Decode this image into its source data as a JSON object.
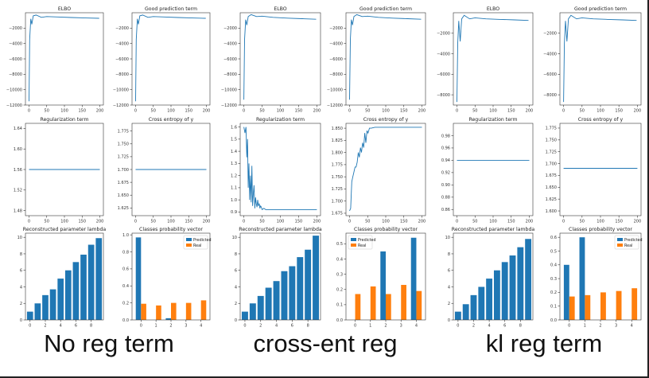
{
  "colors": {
    "line": "#1f77b4",
    "predicted": "#1f77b4",
    "real": "#ff7f0e"
  },
  "captions": [
    "No reg term",
    "cross-ent reg",
    "kl reg term"
  ],
  "chart_data": [
    {
      "type": "line",
      "title": "ELBO",
      "xlim": [
        0,
        200
      ],
      "ylim": [
        -12000,
        0
      ],
      "xticks": [
        0,
        50,
        100,
        150,
        200
      ],
      "yticks": [
        -2000,
        -4000,
        -6000,
        -8000,
        -10000,
        -12000
      ],
      "ytick_labels": [
        "−2000",
        "−4000",
        "−6000",
        "−8000",
        "−10000",
        "−12000"
      ],
      "x": [
        0,
        2,
        5,
        8,
        12,
        20,
        35,
        50,
        80,
        120,
        160,
        198
      ],
      "y": [
        -11500,
        -3500,
        -800,
        -1500,
        -400,
        -300,
        -600,
        -500,
        -550,
        -620,
        -680,
        -720
      ]
    },
    {
      "type": "line",
      "title": "Good prediction term",
      "xlim": [
        0,
        200
      ],
      "ylim": [
        -12000,
        0
      ],
      "xticks": [
        0,
        50,
        100,
        150,
        200
      ],
      "yticks": [
        -2000,
        -4000,
        -6000,
        -8000,
        -10000,
        -12000
      ],
      "ytick_labels": [
        "−2000",
        "−4000",
        "−6000",
        "−8000",
        "−10000",
        "−12000"
      ],
      "x": [
        0,
        2,
        5,
        8,
        12,
        20,
        35,
        50,
        80,
        120,
        160,
        198
      ],
      "y": [
        -11500,
        -3500,
        -800,
        -1500,
        -400,
        -300,
        -600,
        -500,
        -550,
        -620,
        -680,
        -720
      ]
    },
    {
      "type": "line",
      "title": "ELBO",
      "xlim": [
        0,
        200
      ],
      "ylim": [
        -12000,
        0
      ],
      "xticks": [
        0,
        50,
        100,
        150,
        200
      ],
      "yticks": [
        -2000,
        -4000,
        -6000,
        -8000,
        -10000,
        -12000
      ],
      "ytick_labels": [
        "−2000",
        "−4000",
        "−6000",
        "−8000",
        "−10000",
        "−12000"
      ],
      "x": [
        0,
        2,
        5,
        8,
        12,
        20,
        35,
        50,
        80,
        120,
        160,
        198
      ],
      "y": [
        -11300,
        -3500,
        -900,
        -1600,
        -500,
        -250,
        -500,
        -450,
        -600,
        -700,
        -780,
        -850
      ]
    },
    {
      "type": "line",
      "title": "Good prediction term",
      "xlim": [
        0,
        200
      ],
      "ylim": [
        -12000,
        0
      ],
      "xticks": [
        0,
        50,
        100,
        150,
        200
      ],
      "yticks": [
        -2000,
        -4000,
        -6000,
        -8000,
        -10000,
        -12000
      ],
      "ytick_labels": [
        "−2000",
        "−4000",
        "−6000",
        "−8000",
        "−10000",
        "−12000"
      ],
      "x": [
        0,
        2,
        5,
        8,
        12,
        20,
        35,
        50,
        80,
        120,
        160,
        198
      ],
      "y": [
        -11300,
        -3500,
        -900,
        -1600,
        -500,
        -250,
        -500,
        -450,
        -600,
        -700,
        -780,
        -850
      ]
    },
    {
      "type": "line",
      "title": "ELBO",
      "xlim": [
        0,
        200
      ],
      "ylim": [
        -9000,
        0
      ],
      "xticks": [
        0,
        50,
        100,
        150,
        200
      ],
      "yticks": [
        -2000,
        -4000,
        -6000,
        -8000
      ],
      "ytick_labels": [
        "−2000",
        "−4000",
        "−6000",
        "−8000"
      ],
      "x": [
        0,
        2,
        5,
        9,
        13,
        20,
        35,
        50,
        80,
        120,
        160,
        198
      ],
      "y": [
        -8700,
        -3000,
        -800,
        -2800,
        -600,
        -250,
        -600,
        -500,
        -600,
        -650,
        -700,
        -750
      ]
    },
    {
      "type": "line",
      "title": "Good prediction term",
      "xlim": [
        0,
        200
      ],
      "ylim": [
        -9000,
        0
      ],
      "xticks": [
        0,
        50,
        100,
        150,
        200
      ],
      "yticks": [
        -2000,
        -4000,
        -6000,
        -8000
      ],
      "ytick_labels": [
        "−2000",
        "−4000",
        "−6000",
        "−8000"
      ],
      "x": [
        0,
        2,
        5,
        9,
        13,
        20,
        35,
        50,
        80,
        120,
        160,
        198
      ],
      "y": [
        -8700,
        -3000,
        -800,
        -2800,
        -600,
        -250,
        -600,
        -500,
        -600,
        -650,
        -700,
        -750
      ]
    },
    {
      "type": "line",
      "title": "Regularization term",
      "xlim": [
        0,
        200
      ],
      "ylim": [
        1.47,
        1.65
      ],
      "xticks": [
        0,
        50,
        100,
        150,
        200
      ],
      "yticks": [
        1.48,
        1.52,
        1.56,
        1.6,
        1.64
      ],
      "ytick_labels": [
        "1.48",
        "1.52",
        "1.56",
        "1.60",
        "1.64"
      ],
      "x": [
        0,
        200
      ],
      "y": [
        1.56,
        1.56
      ]
    },
    {
      "type": "line",
      "title": "Cross entropy of y",
      "xlim": [
        0,
        200
      ],
      "ylim": [
        1.61,
        1.79
      ],
      "xticks": [
        0,
        50,
        100,
        150,
        200
      ],
      "yticks": [
        1.625,
        1.65,
        1.675,
        1.7,
        1.725,
        1.75,
        1.775
      ],
      "ytick_labels": [
        "1.625",
        "1.650",
        "1.675",
        "1.700",
        "1.725",
        "1.750",
        "1.775"
      ],
      "x": [
        0,
        200
      ],
      "y": [
        1.7,
        1.7
      ]
    },
    {
      "type": "line",
      "title": "Regularization term",
      "xlim": [
        0,
        200
      ],
      "ylim": [
        0.87,
        1.63
      ],
      "xticks": [
        0,
        50,
        100,
        150,
        200
      ],
      "yticks": [
        0.9,
        1.0,
        1.1,
        1.2,
        1.3,
        1.4,
        1.5,
        1.6
      ],
      "ytick_labels": [
        "0.9",
        "1.0",
        "1.1",
        "1.2",
        "1.3",
        "1.4",
        "1.5",
        "1.6"
      ],
      "x": [
        0,
        3,
        6,
        8,
        10,
        12,
        14,
        16,
        18,
        20,
        22,
        24,
        26,
        28,
        30,
        32,
        34,
        36,
        38,
        40,
        42,
        44,
        46,
        48,
        50,
        55,
        60,
        70,
        80,
        100,
        150,
        200
      ],
      "y": [
        1.6,
        1.55,
        1.6,
        1.35,
        1.5,
        1.1,
        1.3,
        1.0,
        1.2,
        0.98,
        1.28,
        0.95,
        1.05,
        1.12,
        0.93,
        1.02,
        0.97,
        0.94,
        1.0,
        0.95,
        0.97,
        0.93,
        0.95,
        0.94,
        0.92,
        0.93,
        0.92,
        0.92,
        0.92,
        0.92,
        0.92,
        0.92
      ]
    },
    {
      "type": "line",
      "title": "Cross entropy of y",
      "xlim": [
        0,
        200
      ],
      "ylim": [
        1.67,
        1.86
      ],
      "xticks": [
        0,
        50,
        100,
        150,
        200
      ],
      "yticks": [
        1.675,
        1.7,
        1.725,
        1.75,
        1.775,
        1.8,
        1.825,
        1.85
      ],
      "ytick_labels": [
        "1.675",
        "1.700",
        "1.725",
        "1.750",
        "1.775",
        "1.800",
        "1.825",
        "1.850"
      ],
      "x": [
        0,
        3,
        6,
        9,
        12,
        15,
        18,
        21,
        24,
        27,
        30,
        33,
        36,
        39,
        42,
        45,
        48,
        51,
        55,
        60,
        70,
        100,
        150,
        200
      ],
      "y": [
        1.68,
        1.685,
        1.74,
        1.75,
        1.76,
        1.77,
        1.77,
        1.78,
        1.8,
        1.79,
        1.81,
        1.8,
        1.82,
        1.81,
        1.84,
        1.82,
        1.845,
        1.84,
        1.85,
        1.85,
        1.852,
        1.852,
        1.852,
        1.852
      ]
    },
    {
      "type": "line",
      "title": "Regularization term",
      "xlim": [
        0,
        200
      ],
      "ylim": [
        0.85,
        1.0
      ],
      "xticks": [
        0,
        50,
        100,
        150,
        200
      ],
      "yticks": [
        0.86,
        0.88,
        0.9,
        0.92,
        0.94,
        0.96,
        0.98
      ],
      "ytick_labels": [
        "0.86",
        "0.88",
        "0.90",
        "0.92",
        "0.94",
        "0.96",
        "0.98"
      ],
      "x": [
        0,
        200
      ],
      "y": [
        0.94,
        0.94
      ]
    },
    {
      "type": "line",
      "title": "Cross entropy of y",
      "xlim": [
        0,
        200
      ],
      "ylim": [
        1.59,
        1.785
      ],
      "xticks": [
        0,
        50,
        100,
        150,
        200
      ],
      "yticks": [
        1.6,
        1.625,
        1.65,
        1.675,
        1.7,
        1.725,
        1.75,
        1.775
      ],
      "ytick_labels": [
        "1.600",
        "1.625",
        "1.650",
        "1.675",
        "1.700",
        "1.725",
        "1.750",
        "1.775"
      ],
      "x": [
        0,
        200
      ],
      "y": [
        1.69,
        1.69
      ]
    },
    {
      "type": "bar",
      "title": "Reconstructed parameter lambda",
      "categories": [
        0,
        1,
        2,
        3,
        4,
        5,
        6,
        7,
        8,
        9
      ],
      "xticks": [
        0,
        2,
        4,
        6,
        8
      ],
      "values": [
        1.0,
        2.0,
        3.0,
        3.7,
        5.0,
        6.0,
        7.0,
        7.9,
        9.1,
        9.9
      ],
      "ylim": [
        0,
        10.5
      ],
      "yticks": [
        0,
        2,
        4,
        6,
        8,
        10
      ]
    },
    {
      "type": "bar",
      "title": "Classes probability vector",
      "categories": [
        0,
        1,
        2,
        3,
        4
      ],
      "xticks": [
        0,
        1,
        2,
        3,
        4
      ],
      "series": [
        {
          "name": "Predicted",
          "values": [
            0.97,
            0.0,
            0.02,
            0.0,
            0.0
          ]
        },
        {
          "name": "Real",
          "values": [
            0.19,
            0.17,
            0.2,
            0.2,
            0.23
          ]
        }
      ],
      "ylim": [
        0,
        1.02
      ],
      "yticks": [
        0.0,
        0.2,
        0.4,
        0.6,
        0.8,
        1.0
      ],
      "ytick_labels": [
        "0.0",
        "0.2",
        "0.4",
        "0.6",
        "0.8",
        "1.0"
      ],
      "legend": "top-right"
    },
    {
      "type": "bar",
      "title": "Reconstructed parameter lambda",
      "categories": [
        0,
        1,
        2,
        3,
        4,
        5,
        6,
        7,
        8,
        9
      ],
      "xticks": [
        0,
        2,
        4,
        6,
        8
      ],
      "values": [
        1.0,
        2.0,
        2.9,
        3.9,
        4.7,
        5.9,
        6.5,
        7.6,
        8.5,
        10.2
      ],
      "ylim": [
        0,
        10.5
      ],
      "yticks": [
        0,
        2,
        4,
        6,
        8,
        10
      ]
    },
    {
      "type": "bar",
      "title": "Classes probability vector",
      "categories": [
        0,
        1,
        2,
        3,
        4
      ],
      "xticks": [
        0,
        1,
        2,
        3,
        4
      ],
      "series": [
        {
          "name": "Predicted",
          "values": [
            0.0,
            0.0,
            0.45,
            0.0,
            0.54
          ]
        },
        {
          "name": "Real",
          "values": [
            0.17,
            0.22,
            0.17,
            0.23,
            0.19
          ]
        }
      ],
      "ylim": [
        0,
        0.57
      ],
      "yticks": [
        0.0,
        0.1,
        0.2,
        0.3,
        0.4,
        0.5
      ],
      "ytick_labels": [
        "0.0",
        "0.1",
        "0.2",
        "0.3",
        "0.4",
        "0.5"
      ],
      "legend": "top-left"
    },
    {
      "type": "bar",
      "title": "Reconstructed parameter lambda",
      "categories": [
        0,
        1,
        2,
        3,
        4,
        5,
        6,
        7,
        8,
        9
      ],
      "xticks": [
        0,
        2,
        4,
        6,
        8
      ],
      "values": [
        1.0,
        1.9,
        3.0,
        4.0,
        5.0,
        6.0,
        7.0,
        7.8,
        8.8,
        9.8
      ],
      "ylim": [
        0,
        10.5
      ],
      "yticks": [
        0,
        2,
        4,
        6,
        8,
        10
      ]
    },
    {
      "type": "bar",
      "title": "Classes probability vector",
      "categories": [
        0,
        1,
        2,
        3,
        4
      ],
      "xticks": [
        0,
        1,
        2,
        3,
        4
      ],
      "series": [
        {
          "name": "Predicted",
          "values": [
            0.4,
            0.6,
            0.0,
            0.0,
            0.0
          ]
        },
        {
          "name": "Real",
          "values": [
            0.17,
            0.18,
            0.2,
            0.21,
            0.23
          ]
        }
      ],
      "ylim": [
        0,
        0.63
      ],
      "yticks": [
        0.0,
        0.1,
        0.2,
        0.3,
        0.4,
        0.5,
        0.6
      ],
      "ytick_labels": [
        "0.0",
        "0.1",
        "0.2",
        "0.3",
        "0.4",
        "0.5",
        "0.6"
      ],
      "legend": "top-right"
    }
  ]
}
